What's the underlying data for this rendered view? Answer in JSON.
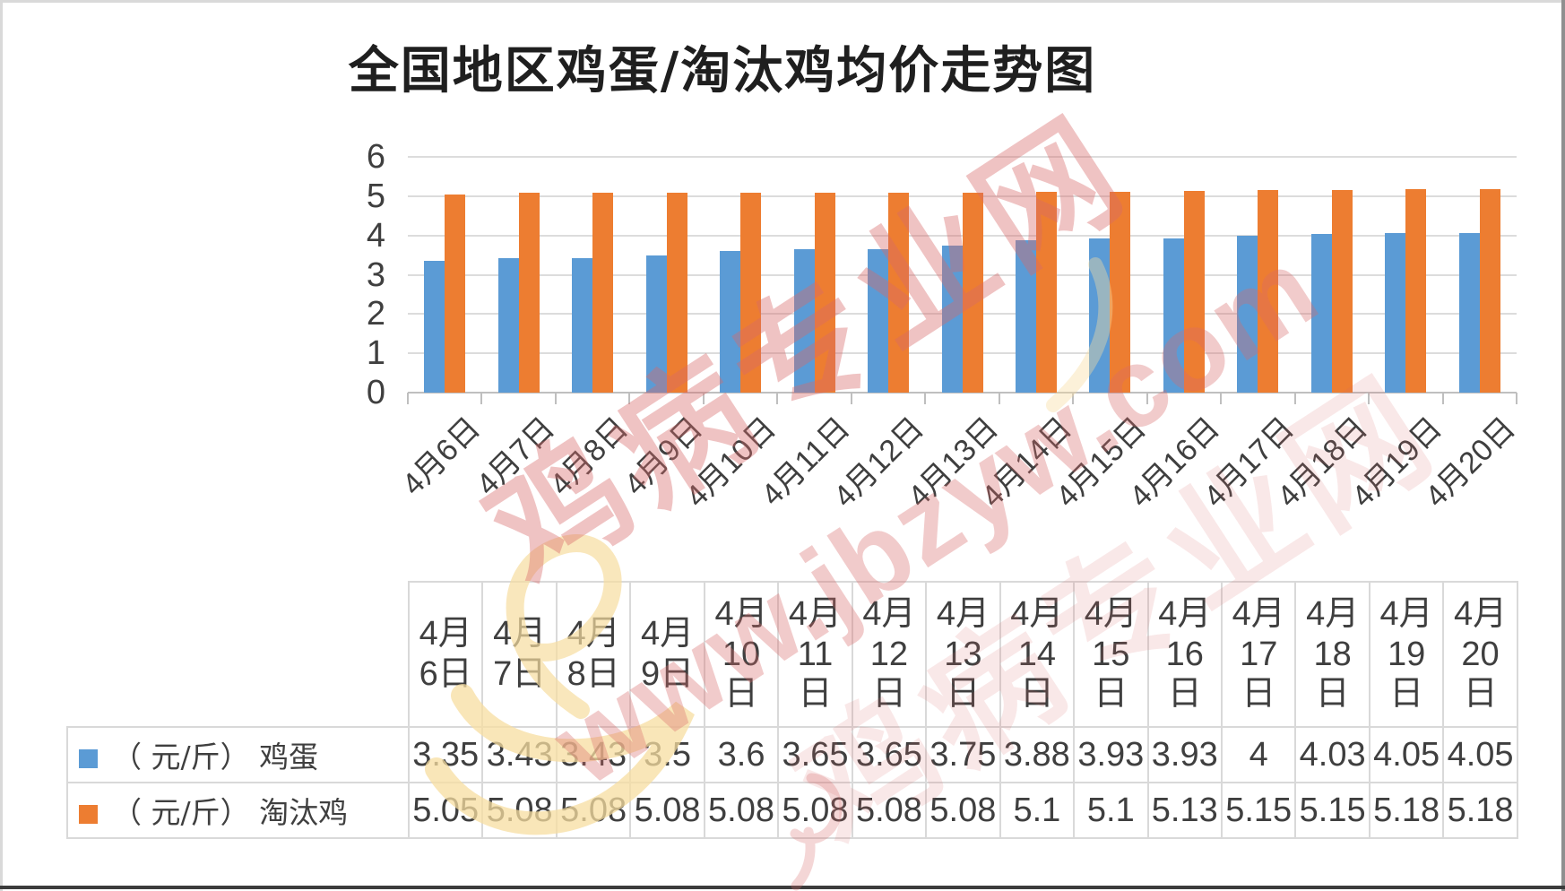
{
  "title": "全国地区鸡蛋/淘汰鸡均价走势图",
  "chart_data": {
    "type": "bar",
    "title": "全国地区鸡蛋/淘汰鸡均价走势图",
    "categories": [
      "4月6日",
      "4月7日",
      "4月8日",
      "4月9日",
      "4月10日",
      "4月11日",
      "4月12日",
      "4月13日",
      "4月14日",
      "4月15日",
      "4月16日",
      "4月17日",
      "4月18日",
      "4月19日",
      "4月20日"
    ],
    "series": [
      {
        "name": "（ 元/斤） 鸡蛋",
        "color": "#5B9BD5",
        "values": [
          3.35,
          3.43,
          3.43,
          3.5,
          3.6,
          3.65,
          3.65,
          3.75,
          3.88,
          3.93,
          3.93,
          4,
          4.03,
          4.05,
          4.05
        ]
      },
      {
        "name": "（ 元/斤） 淘汰鸡",
        "color": "#ED7D31",
        "values": [
          5.05,
          5.08,
          5.08,
          5.08,
          5.08,
          5.08,
          5.08,
          5.08,
          5.1,
          5.1,
          5.13,
          5.15,
          5.15,
          5.18,
          5.18
        ]
      }
    ],
    "xlabel": "",
    "ylabel": "",
    "ylim": [
      0,
      6
    ],
    "yticks": [
      0,
      1,
      2,
      3,
      4,
      5,
      6
    ],
    "grid": true,
    "legend_position": "bottom-table-left"
  },
  "table": {
    "headers": [
      [
        "4月",
        "6日"
      ],
      [
        "4月",
        "7日"
      ],
      [
        "4月",
        "8日"
      ],
      [
        "4月",
        "9日"
      ],
      [
        "4月",
        "10",
        "日"
      ],
      [
        "4月",
        "11",
        "日"
      ],
      [
        "4月",
        "12",
        "日"
      ],
      [
        "4月",
        "13",
        "日"
      ],
      [
        "4月",
        "14",
        "日"
      ],
      [
        "4月",
        "15",
        "日"
      ],
      [
        "4月",
        "16",
        "日"
      ],
      [
        "4月",
        "17",
        "日"
      ],
      [
        "4月",
        "18",
        "日"
      ],
      [
        "4月",
        "19",
        "日"
      ],
      [
        "4月",
        "20",
        "日"
      ]
    ]
  },
  "watermark": {
    "site_name": "鸡病专业网",
    "site_url": "www.jbzyw.com"
  },
  "colors": {
    "egg_series": "#5B9BD5",
    "culled_series": "#ED7D31",
    "gridline": "#DCDCDC",
    "axis_line": "#BFBFBF",
    "text": "#3F3F3F",
    "watermark_pink": "#D96A6A",
    "watermark_yellow": "#F7DDA0"
  }
}
